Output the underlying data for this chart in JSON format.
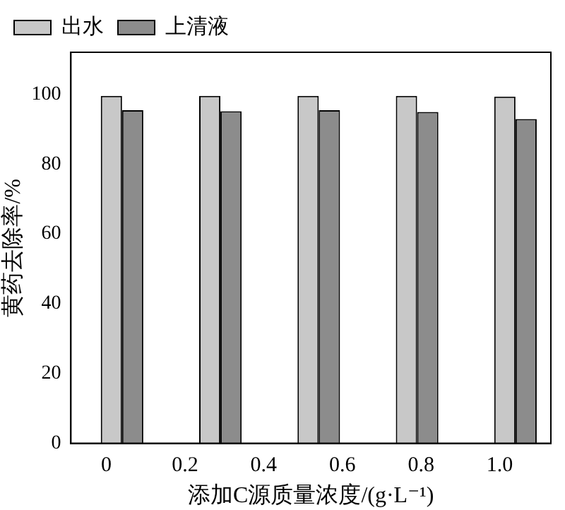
{
  "chart_data": {
    "type": "bar",
    "xlabel": "添加C源质量浓度/(g·L⁻¹)",
    "ylabel": "黄药去除率/%",
    "x": [
      0.04,
      0.29,
      0.54,
      0.79,
      1.04
    ],
    "series": [
      {
        "name": "出水",
        "color": "#c8c8c8",
        "values": [
          99.5,
          99.5,
          99.5,
          99.5,
          99.3
        ]
      },
      {
        "name": "上清液",
        "color": "#8c8c8c",
        "values": [
          95.4,
          95.1,
          95.4,
          94.9,
          92.9
        ]
      }
    ],
    "xlim": [
      -0.09,
      1.13
    ],
    "xticks": [
      {
        "value": 0,
        "label": "0"
      },
      {
        "value": 0.2,
        "label": "0.2"
      },
      {
        "value": 0.4,
        "label": "0.4"
      },
      {
        "value": 0.6,
        "label": "0.6"
      },
      {
        "value": 0.8,
        "label": "0.8"
      },
      {
        "value": 1,
        "label": "1.0"
      }
    ],
    "ylim": [
      0,
      112
    ],
    "yticks": [
      0,
      20,
      40,
      60,
      80,
      100
    ],
    "grid": false,
    "legend": "top left"
  }
}
